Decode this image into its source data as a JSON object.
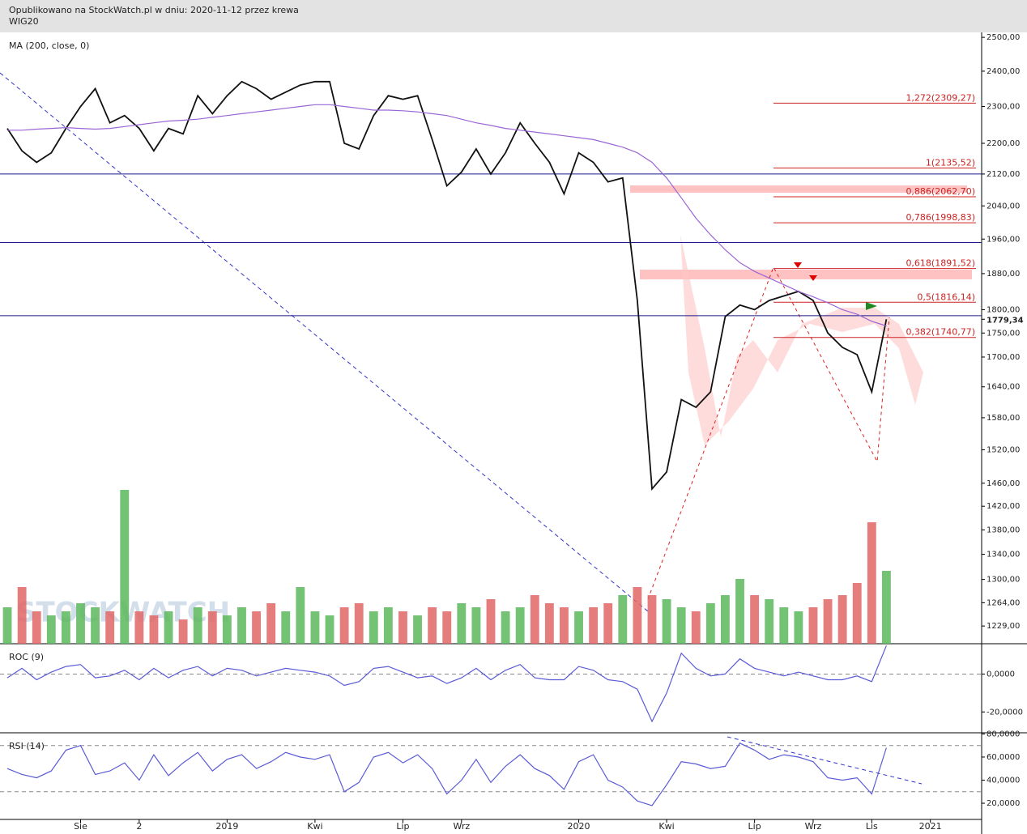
{
  "header": {
    "line1": "Opublikowano na StockWatch.pl w dniu: 2020-11-12 przez krewa",
    "line2": "WIG20"
  },
  "watermark": "STOCKWATCH",
  "chart_data": [
    {
      "type": "line",
      "log_scale": true,
      "categories": [
        null,
        null,
        null,
        null,
        null,
        "Sie",
        null,
        null,
        null,
        "2",
        null,
        null,
        null,
        null,
        null,
        "2019",
        null,
        null,
        null,
        null,
        null,
        "Kwi",
        null,
        null,
        null,
        null,
        null,
        "Lip",
        null,
        null,
        null,
        "Wrz",
        null,
        null,
        null,
        null,
        null,
        null,
        null,
        "2020",
        null,
        null,
        null,
        null,
        null,
        "Kwi",
        null,
        null,
        null,
        null,
        null,
        "Lip",
        null,
        null,
        null,
        "Wrz",
        null,
        null,
        null,
        "Lis",
        null,
        null,
        null,
        "2021",
        null,
        null,
        null
      ],
      "ylim": [
        1203,
        2515
      ],
      "yticks": [
        {
          "value": 2500,
          "label": "2500,00"
        },
        {
          "value": 2400,
          "label": "2400,00"
        },
        {
          "value": 2300,
          "label": "2300,00"
        },
        {
          "value": 2200,
          "label": "2200,00"
        },
        {
          "value": 2120,
          "label": "2120,00"
        },
        {
          "value": 2040,
          "label": "2040,00"
        },
        {
          "value": 1960,
          "label": "1960,00"
        },
        {
          "value": 1880,
          "label": "1880,00"
        },
        {
          "value": 1800,
          "label": "1800,00"
        },
        {
          "value": 1750,
          "label": "1750,00"
        },
        {
          "value": 1700,
          "label": "1700,00"
        },
        {
          "value": 1640,
          "label": "1640,00"
        },
        {
          "value": 1580,
          "label": "1580,00"
        },
        {
          "value": 1520,
          "label": "1520,00"
        },
        {
          "value": 1460,
          "label": "1460,00"
        },
        {
          "value": 1420,
          "label": "1420,00"
        },
        {
          "value": 1380,
          "label": "1380,00"
        },
        {
          "value": 1340,
          "label": "1340,00"
        },
        {
          "value": 1300,
          "label": "1300,00"
        },
        {
          "value": 1264,
          "label": "1264,00"
        },
        {
          "value": 1229,
          "label": "1229,00"
        }
      ],
      "y2lim": [
        0,
        755
      ],
      "last_price": {
        "value": 1779.34,
        "label": "1779,34"
      },
      "hlines": [
        2120,
        1952,
        1787
      ],
      "hline_color": "#1a1a8c",
      "fib_color": "#cc2222",
      "fib_levels": [
        {
          "value": 2309.27,
          "label": "1,272(2309,27)"
        },
        {
          "value": 2135.52,
          "label": "1(2135,52)"
        },
        {
          "value": 2062.7,
          "label": "0,886(2062,70)"
        },
        {
          "value": 1998.83,
          "label": "0,786(1998,83)"
        },
        {
          "value": 1891.52,
          "label": "0,618(1891,52)"
        },
        {
          "value": 1816.14,
          "label": "0,5(1816,14)"
        },
        {
          "value": 1740.77,
          "label": "0,382(1740,77)"
        }
      ],
      "series": [
        {
          "color": "#111111",
          "values": [
            2240,
            2180,
            2150,
            2175,
            2240,
            2300,
            2350,
            2255,
            2275,
            2240,
            2180,
            2240,
            2225,
            2330,
            2280,
            2330,
            2370,
            2350,
            2320,
            2340,
            2360,
            2370,
            2370,
            2200,
            2185,
            2275,
            2330,
            2320,
            2330,
            2210,
            2090,
            2125,
            2185,
            2120,
            2175,
            2255,
            2200,
            2150,
            2070,
            2175,
            2150,
            2100,
            2110,
            1820,
            1450,
            1480,
            1615,
            1600,
            1630,
            1785,
            1810,
            1800,
            1820,
            1830,
            1840,
            1820,
            1750,
            1720,
            1705,
            1630,
            1779.34,
            null,
            null,
            null,
            null,
            null,
            null
          ]
        },
        {
          "name": "MA (200, close, 0)",
          "color": "#9a66d6",
          "values": [
            2235,
            2235,
            2238,
            2240,
            2242,
            2240,
            2238,
            2240,
            2245,
            2250,
            2255,
            2260,
            2262,
            2265,
            2270,
            2275,
            2280,
            2285,
            2290,
            2295,
            2300,
            2305,
            2305,
            2300,
            2295,
            2290,
            2290,
            2288,
            2285,
            2280,
            2275,
            2265,
            2255,
            2248,
            2240,
            2235,
            2230,
            2225,
            2220,
            2215,
            2210,
            2200,
            2190,
            2175,
            2150,
            2110,
            2060,
            2010,
            1970,
            1935,
            1905,
            1885,
            1870,
            1855,
            1840,
            1828,
            1815,
            1800,
            1790,
            1775,
            1765,
            null,
            null,
            null,
            null,
            null,
            null
          ]
        },
        {
          "type": "bar",
          "axis": "y2",
          "up_color": "#5cb85c",
          "down_color": "#e06666",
          "values": [
            45,
            70,
            40,
            35,
            40,
            50,
            45,
            40,
            190,
            40,
            35,
            40,
            30,
            45,
            40,
            35,
            45,
            40,
            50,
            40,
            70,
            40,
            35,
            45,
            50,
            40,
            45,
            40,
            35,
            45,
            40,
            50,
            45,
            55,
            40,
            45,
            60,
            50,
            45,
            40,
            45,
            50,
            60,
            70,
            60,
            55,
            45,
            40,
            50,
            60,
            80,
            60,
            55,
            45,
            40,
            45,
            55,
            60,
            75,
            150,
            90,
            null,
            null,
            null,
            null,
            null,
            null
          ]
        }
      ]
    },
    {
      "type": "line",
      "ylim": [
        -31,
        16
      ],
      "yticks": [
        {
          "value": 0,
          "label": "0,0000"
        },
        {
          "value": -20,
          "label": "-20,0000"
        }
      ],
      "hlines": [
        0
      ],
      "series": [
        {
          "name": "ROC (9)",
          "color": "#5a5ad6",
          "values": [
            -2,
            3,
            -3,
            1,
            4,
            5,
            -2,
            -1,
            2,
            -3,
            3,
            -2,
            2,
            4,
            -1,
            3,
            2,
            -1,
            1,
            3,
            2,
            1,
            -1,
            -6,
            -4,
            3,
            4,
            1,
            -2,
            -1,
            -5,
            -2,
            3,
            -3,
            2,
            5,
            -2,
            -3,
            -3,
            4,
            2,
            -3,
            -4,
            -8,
            -25,
            -10,
            11,
            3,
            -1,
            0,
            8,
            3,
            1,
            -1,
            1,
            -1,
            -3,
            -3,
            -1,
            -4,
            15,
            null,
            null,
            null,
            null,
            null,
            null
          ]
        }
      ]
    },
    {
      "type": "line",
      "ylim": [
        6,
        81
      ],
      "yticks": [
        {
          "value": 80,
          "label": "80,0000"
        },
        {
          "value": 60,
          "label": "60,0000"
        },
        {
          "value": 40,
          "label": "40,0000"
        },
        {
          "value": 20,
          "label": "20,0000"
        }
      ],
      "hlines": [
        70,
        30
      ],
      "series": [
        {
          "name": "RSI (14)",
          "color": "#5a5ad6",
          "values": [
            50,
            45,
            42,
            48,
            66,
            70,
            45,
            48,
            55,
            40,
            62,
            44,
            55,
            64,
            48,
            58,
            62,
            50,
            56,
            64,
            60,
            58,
            62,
            30,
            38,
            60,
            64,
            55,
            62,
            50,
            28,
            40,
            58,
            38,
            52,
            62,
            50,
            44,
            32,
            56,
            62,
            40,
            34,
            22,
            18,
            36,
            56,
            54,
            50,
            52,
            72,
            66,
            58,
            62,
            60,
            56,
            42,
            40,
            42,
            28,
            68,
            null,
            null,
            null,
            null,
            null,
            null
          ]
        }
      ]
    }
  ]
}
